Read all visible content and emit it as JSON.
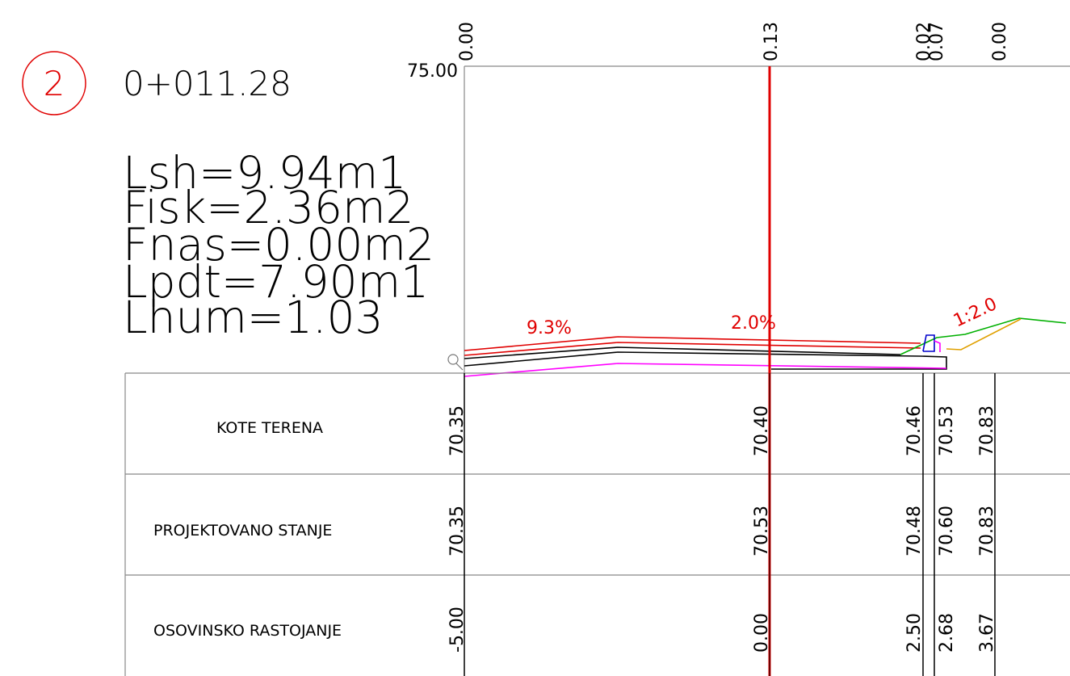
{
  "section": {
    "number": "2",
    "station": "0+011.28"
  },
  "stats": [
    "Lsh=9.94m1",
    "Fisk=2.36m2",
    "Fnas=0.00m2",
    "Lpdt=7.90m1",
    "Lhum=1.03"
  ],
  "reference_elevation": "75.00",
  "top_values": [
    "0.00",
    "0.13",
    "0.02",
    "0.07",
    "0.00"
  ],
  "annotations": {
    "slope_left": "9.3%",
    "slope_right": "2.0%",
    "embankment_slope": "1:2.0"
  },
  "table": {
    "rows": [
      {
        "label": "KOTE TERENA",
        "values": [
          "70.35",
          "70.40",
          "70.46",
          "70.53",
          "70.83"
        ]
      },
      {
        "label": "PROJEKTOVANO STANJE",
        "values": [
          "70.35",
          "70.53",
          "70.48",
          "70.60",
          "70.83"
        ]
      },
      {
        "label": "OSOVINSKO RASTOJANJE",
        "values": [
          "-5.00",
          "0.00",
          "2.50",
          "2.68",
          "3.67"
        ]
      }
    ]
  },
  "colors": {
    "axis": "#e00000",
    "design": "#e00000",
    "grid": "#888888",
    "terrain": "#00b000",
    "subgrade": "#ff00ff",
    "curb": "#0000cc",
    "ditch": "#e0a000",
    "text": "#000000"
  }
}
